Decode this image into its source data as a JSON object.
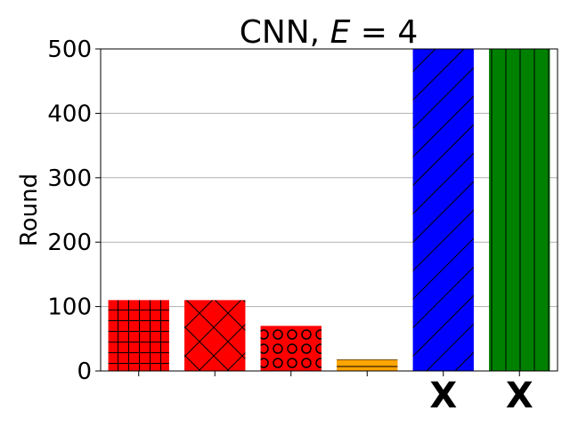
{
  "chart_data": {
    "type": "bar",
    "title": "CNN, E = 4",
    "title_prefix": "CNN, ",
    "title_var": "E",
    "title_suffix": " = 4",
    "xlabel": "",
    "ylabel": "Round",
    "ylim": [
      0,
      500
    ],
    "yticks": [
      0,
      100,
      200,
      300,
      400,
      500
    ],
    "grid": "y",
    "categories": [
      "",
      "",
      "",
      "",
      "",
      ""
    ],
    "values": [
      110,
      110,
      70,
      18,
      500,
      500
    ],
    "bar_colors": [
      "#ff0000",
      "#ff0000",
      "#ff0000",
      "#ffa500",
      "#0000ff",
      "#008000"
    ],
    "bar_hatches": [
      "grid",
      "cross",
      "circle",
      "horizontal",
      "diagonal",
      "vertical"
    ],
    "bar_marks": [
      "",
      "",
      "",
      "",
      "X",
      "X"
    ]
  }
}
